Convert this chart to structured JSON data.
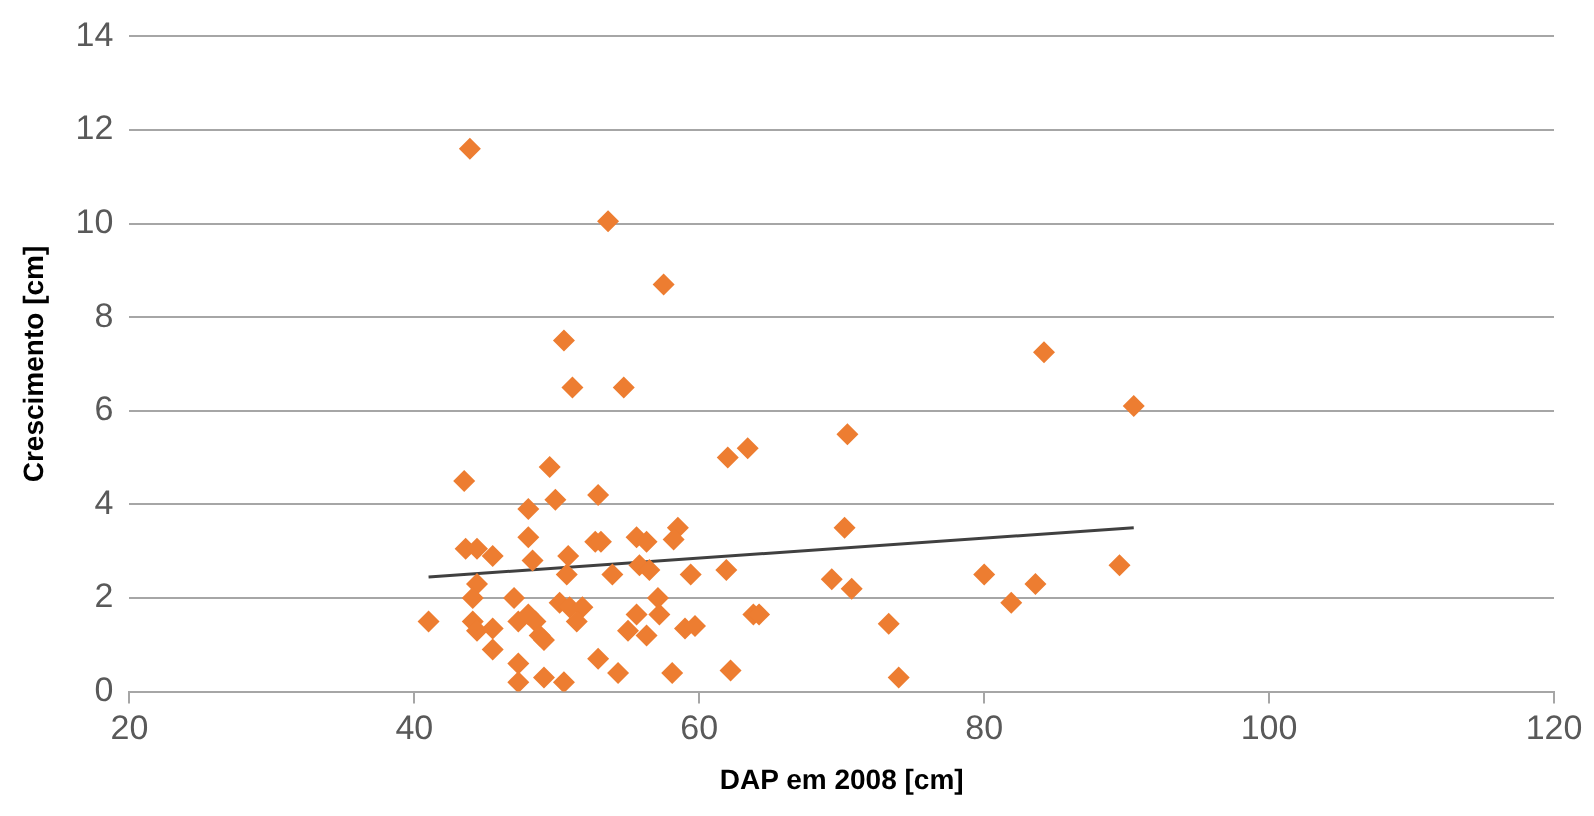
{
  "chart_data": {
    "type": "scatter",
    "xlabel": "DAP em 2008 [cm]",
    "ylabel": "Crescimento [cm]",
    "xlim": [
      20,
      120
    ],
    "xticks": [
      20,
      40,
      60,
      80,
      100,
      120
    ],
    "ylim": [
      0,
      14
    ],
    "yticks": [
      0,
      2,
      4,
      6,
      8,
      10,
      12,
      14
    ],
    "grid": "y",
    "legend": false,
    "marker": "diamond",
    "series": [
      {
        "color": "#ed7d31",
        "x": [
          43.9,
          53.6,
          57.5,
          50.5,
          51.1,
          54.7,
          43.5,
          49.5,
          62.0,
          63.4,
          49.9,
          52.9,
          48.0,
          48.0,
          52.7,
          53.1,
          55.6,
          56.3,
          58.5,
          58.2,
          43.6,
          44.4,
          45.5,
          48.3,
          50.8,
          50.7,
          53.9,
          55.8,
          56.5,
          59.4,
          61.9,
          44.4,
          44.1,
          47.0,
          41.0,
          44.1,
          44.4,
          45.5,
          45.5,
          47.3,
          48.0,
          48.5,
          48.8,
          49.1,
          50.2,
          50.9,
          51.8,
          51.4,
          52.9,
          54.3,
          55.6,
          55.0,
          56.3,
          57.1,
          57.2,
          59.0,
          59.7,
          58.1,
          62.2,
          47.3,
          47.3,
          49.1,
          50.5,
          63.8,
          64.2,
          70.4,
          84.2,
          90.5,
          70.2,
          69.3,
          70.7,
          73.3,
          74.0,
          80.0,
          81.9,
          83.6,
          89.5
        ],
        "values": [
          11.6,
          10.05,
          8.7,
          7.5,
          6.5,
          6.5,
          4.5,
          4.8,
          5.0,
          5.2,
          4.1,
          4.2,
          3.9,
          3.3,
          3.2,
          3.2,
          3.3,
          3.2,
          3.5,
          3.25,
          3.05,
          3.05,
          2.9,
          2.8,
          2.9,
          2.5,
          2.5,
          2.7,
          2.6,
          2.5,
          2.6,
          2.3,
          2.0,
          2.0,
          1.5,
          1.5,
          1.3,
          1.35,
          0.9,
          1.5,
          1.65,
          1.5,
          1.2,
          1.1,
          1.9,
          1.8,
          1.8,
          1.5,
          0.7,
          0.4,
          1.65,
          1.3,
          1.2,
          2.0,
          1.65,
          1.35,
          1.4,
          0.4,
          0.45,
          0.6,
          0.2,
          0.3,
          0.2,
          1.65,
          1.65,
          5.5,
          7.25,
          6.1,
          3.5,
          2.4,
          2.2,
          1.45,
          0.3,
          2.5,
          1.9,
          2.3,
          2.7
        ]
      },
      {
        "type": "line",
        "color": "#404040",
        "marker": "none",
        "x": [
          41,
          90.5
        ],
        "values": [
          2.45,
          3.5
        ]
      }
    ]
  }
}
